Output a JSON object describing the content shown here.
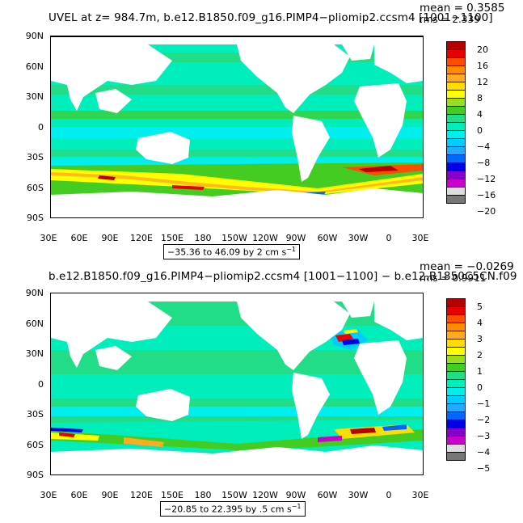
{
  "panels": [
    {
      "title": "UVEL at z= 984.7m, b.e12.B1850.f09_g16.PIMP4−pliomip2.ccsm4 [1001−1100]",
      "mean": "mean = 0.3585",
      "rms": "rms = 2.339",
      "range": "−35.36 to 46.09 by 2 cm s",
      "range_exp": "−1",
      "colorbar_labels": [
        "20",
        "16",
        "12",
        "8",
        "4",
        "0",
        "−4",
        "−8",
        "−12",
        "−16",
        "−20"
      ],
      "colorbar_colors": [
        "#b40000",
        "#e60000",
        "#ff4d00",
        "#ff8c00",
        "#ffaa22",
        "#ffdd00",
        "#ffff00",
        "#99dd22",
        "#44cc22",
        "#22dd88",
        "#00eebb",
        "#00eeee",
        "#00ccff",
        "#22aaff",
        "#0066ff",
        "#0000e6",
        "#8800cc",
        "#cc00cc",
        "#dddddd",
        "#777777"
      ]
    },
    {
      "title": "b.e12.B1850.f09_g16.PIMP4−pliomip2.ccsm4 [1001−1100] − b.e12.B1850C5CN.f09",
      "mean": "mean = −0.0269",
      "rms": "rms = 0.9911",
      "range": "−20.85 to 22.395 by .5 cm s",
      "range_exp": "−1",
      "colorbar_labels": [
        "5",
        "4",
        "3",
        "2",
        "1",
        "0",
        "−1",
        "−2",
        "−3",
        "−4",
        "−5"
      ],
      "colorbar_colors": [
        "#b40000",
        "#e60000",
        "#ff4d00",
        "#ff8c00",
        "#ffaa22",
        "#ffdd00",
        "#ffff00",
        "#99dd22",
        "#44cc22",
        "#22dd88",
        "#00eebb",
        "#00eeee",
        "#00ccff",
        "#22aaff",
        "#0066ff",
        "#0000e6",
        "#8800cc",
        "#cc00cc",
        "#dddddd",
        "#777777"
      ]
    }
  ],
  "lat_labels": [
    "90N",
    "60N",
    "30N",
    "0",
    "30S",
    "60S",
    "90S"
  ],
  "lon_labels": [
    "30E",
    "60E",
    "90E",
    "120E",
    "150E",
    "180",
    "150W",
    "120W",
    "90W",
    "60W",
    "30W",
    "0",
    "30E"
  ],
  "colors": {
    "ocean_main": "#00eebb",
    "ocean_light": "#22dd88",
    "ocean_cyan": "#00eeee",
    "land": "#ffffff"
  }
}
